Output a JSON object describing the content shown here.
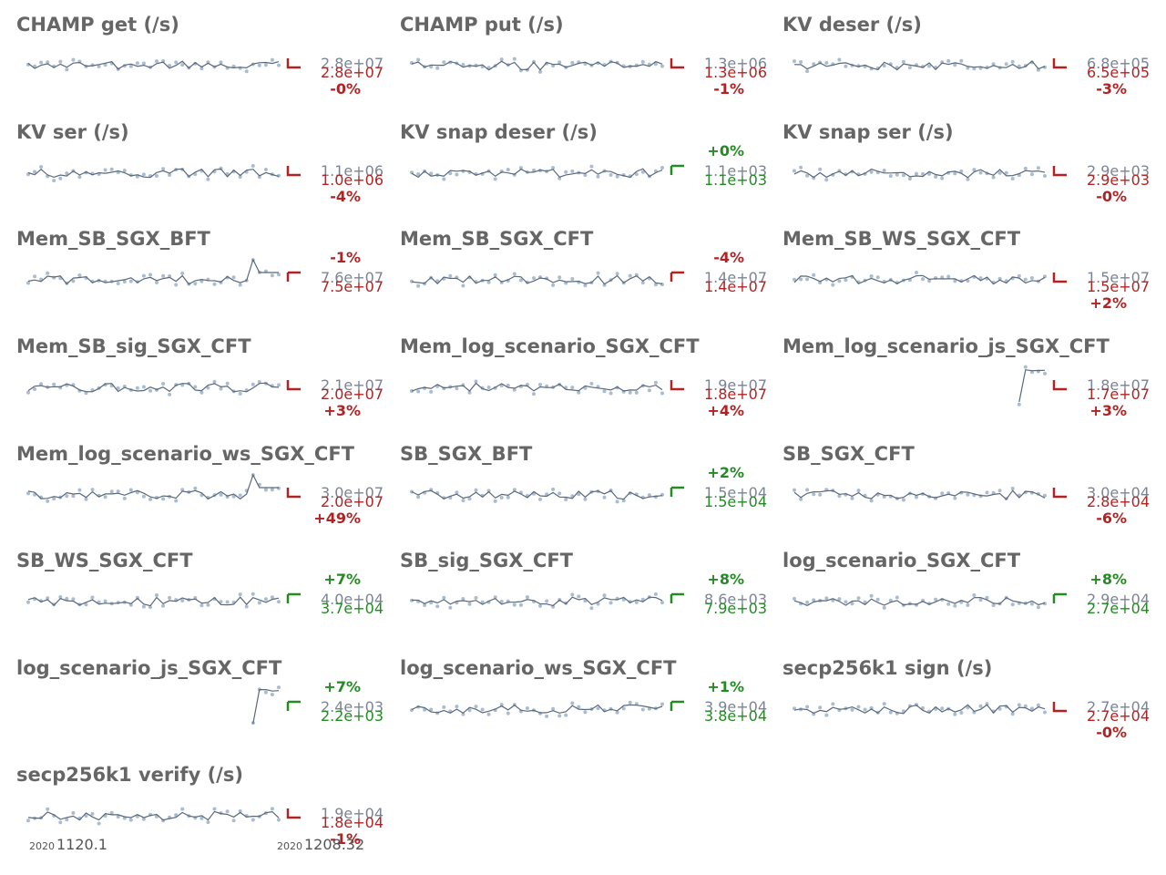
{
  "colors": {
    "title": "#666666",
    "line": "#5a6878",
    "points": "#a9bcd3",
    "value_gray": "#7a8494",
    "red": "#b22222",
    "green": "#228b22"
  },
  "x_axis": {
    "start_year": "2020",
    "start_label": "1120.1",
    "end_year": "2020",
    "end_label": "1208.32"
  },
  "chart_data": [
    {
      "type": "line",
      "title": "CHAMP get (/s)",
      "values_shown": [
        "2.8e+07",
        "2.8e+07"
      ],
      "pct": "-0%",
      "trend": "down",
      "pattern": "noise"
    },
    {
      "type": "line",
      "title": "CHAMP put (/s)",
      "values_shown": [
        "1.3e+06",
        "1.3e+06"
      ],
      "pct": "-1%",
      "trend": "down",
      "pattern": "noise"
    },
    {
      "type": "line",
      "title": "KV deser (/s)",
      "values_shown": [
        "6.8e+05",
        "6.5e+05"
      ],
      "pct": "-3%",
      "trend": "down",
      "pattern": "noise"
    },
    {
      "type": "line",
      "title": "KV ser (/s)",
      "values_shown": [
        "1.1e+06",
        "1.0e+06"
      ],
      "pct": "-4%",
      "trend": "down",
      "pattern": "noise"
    },
    {
      "type": "line",
      "title": "KV snap deser (/s)",
      "values_shown": [
        "1.1e+03",
        "1.1e+03"
      ],
      "pct": "+0%",
      "trend": "up",
      "pattern": "noise"
    },
    {
      "type": "line",
      "title": "KV snap ser (/s)",
      "values_shown": [
        "2.9e+03",
        "2.9e+03"
      ],
      "pct": "-0%",
      "trend": "down",
      "pattern": "noise"
    },
    {
      "type": "line",
      "title": "Mem_SB_SGX_BFT",
      "values_shown": [
        "7.6e+07",
        "7.5e+07"
      ],
      "pct": "-1%",
      "trend": "up",
      "pattern": "spike"
    },
    {
      "type": "line",
      "title": "Mem_SB_SGX_CFT",
      "values_shown": [
        "1.4e+07",
        "1.4e+07"
      ],
      "pct": "-4%",
      "trend": "up",
      "pattern": "noise"
    },
    {
      "type": "line",
      "title": "Mem_SB_WS_SGX_CFT",
      "values_shown": [
        "1.5e+07",
        "1.5e+07"
      ],
      "pct": "+2%",
      "trend": "down",
      "pattern": "noise"
    },
    {
      "type": "line",
      "title": "Mem_SB_sig_SGX_CFT",
      "values_shown": [
        "2.1e+07",
        "2.0e+07"
      ],
      "pct": "+3%",
      "trend": "down",
      "pattern": "noise"
    },
    {
      "type": "line",
      "title": "Mem_log_scenario_SGX_CFT",
      "values_shown": [
        "1.9e+07",
        "1.8e+07"
      ],
      "pct": "+4%",
      "trend": "down",
      "pattern": "noise"
    },
    {
      "type": "line",
      "title": "Mem_log_scenario_js_SGX_CFT",
      "values_shown": [
        "1.8e+07",
        "1.7e+07"
      ],
      "pct": "+3%",
      "trend": "down",
      "pattern": "short"
    },
    {
      "type": "line",
      "title": "Mem_log_scenario_ws_SGX_CFT",
      "values_shown": [
        "3.0e+07",
        "2.0e+07"
      ],
      "pct": "+49%",
      "trend": "down",
      "pattern": "spike"
    },
    {
      "type": "line",
      "title": "SB_SGX_BFT",
      "values_shown": [
        "1.5e+04",
        "1.5e+04"
      ],
      "pct": "+2%",
      "trend": "up",
      "pattern": "noise"
    },
    {
      "type": "line",
      "title": "SB_SGX_CFT",
      "values_shown": [
        "3.0e+04",
        "2.8e+04"
      ],
      "pct": "-6%",
      "trend": "down",
      "pattern": "noise"
    },
    {
      "type": "line",
      "title": "SB_WS_SGX_CFT",
      "values_shown": [
        "4.0e+04",
        "3.7e+04"
      ],
      "pct": "+7%",
      "trend": "up",
      "pattern": "noise"
    },
    {
      "type": "line",
      "title": "SB_sig_SGX_CFT",
      "values_shown": [
        "8.6e+03",
        "7.9e+03"
      ],
      "pct": "+8%",
      "trend": "up",
      "pattern": "noise"
    },
    {
      "type": "line",
      "title": "log_scenario_SGX_CFT",
      "values_shown": [
        "2.9e+04",
        "2.7e+04"
      ],
      "pct": "+8%",
      "trend": "up",
      "pattern": "noise"
    },
    {
      "type": "line",
      "title": "log_scenario_js_SGX_CFT",
      "values_shown": [
        "2.4e+03",
        "2.2e+03"
      ],
      "pct": "+7%",
      "trend": "up",
      "pattern": "short"
    },
    {
      "type": "line",
      "title": "log_scenario_ws_SGX_CFT",
      "values_shown": [
        "3.9e+04",
        "3.8e+04"
      ],
      "pct": "+1%",
      "trend": "up",
      "pattern": "noise"
    },
    {
      "type": "line",
      "title": "secp256k1 sign (/s)",
      "values_shown": [
        "2.7e+04",
        "2.7e+04"
      ],
      "pct": "-0%",
      "trend": "down",
      "pattern": "noise"
    },
    {
      "type": "line",
      "title": "secp256k1 verify (/s)",
      "values_shown": [
        "1.9e+04",
        "1.8e+04"
      ],
      "pct": "-1%",
      "trend": "down",
      "pattern": "noise"
    }
  ]
}
